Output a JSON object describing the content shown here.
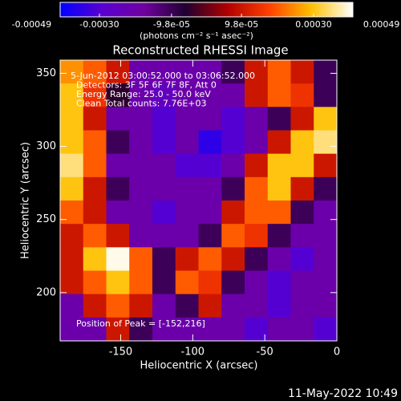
{
  "chart_data": {
    "type": "heatmap",
    "title": "Reconstructed RHESSI Image",
    "annotations": [
      "5-Jun-2012 03:00:52.000 to 03:06:52.000",
      "Detectors: 3F 5F 6F 7F 8F, Att 0",
      "Energy Range: 25.0 - 50.0 keV",
      "Clean     Total counts: 7.76E+03"
    ],
    "peak_label": "Position of Peak = [-152,216]",
    "timestamp": "11-May-2022 10:49",
    "xlabel": "Heliocentric X (arcsec)",
    "ylabel": "Heliocentric Y (arcsec)",
    "xlim": [
      -192,
      0
    ],
    "ylim": [
      167,
      359
    ],
    "xticks": [
      -150,
      -100,
      -50,
      0
    ],
    "yticks": [
      200,
      250,
      300,
      350
    ],
    "x": [
      -184,
      -168,
      -152,
      -136,
      -120,
      -104,
      -88,
      -72,
      -56,
      -40,
      -24,
      -8
    ],
    "y": [
      351,
      335,
      319,
      303,
      287,
      271,
      255,
      239,
      223,
      207,
      191,
      175
    ],
    "z": [
      [
        0.00025,
        0.0002,
        0.0001,
        -0.0002,
        -0.0002,
        -0.0002,
        -0.0002,
        -0.0001,
        0.0001,
        0.0002,
        0.0001,
        -0.0001
      ],
      [
        0.0003,
        0.00015,
        -5e-05,
        -0.0002,
        -0.00025,
        -0.0002,
        -0.0002,
        -0.0002,
        0.0001,
        0.0002,
        0.00015,
        -0.0001
      ],
      [
        0.0003,
        0.0001,
        -0.0002,
        -0.0002,
        -0.0003,
        -0.0002,
        -0.0002,
        -0.0003,
        -0.0002,
        -0.0001,
        0.0001,
        0.0003
      ],
      [
        0.0003,
        0.0002,
        -0.0001,
        -0.0002,
        -0.0003,
        -0.0002,
        -0.00035,
        -0.0003,
        -0.0002,
        0.0001,
        0.0003,
        0.00035
      ],
      [
        0.00035,
        0.0002,
        -0.0002,
        -0.0002,
        -0.0002,
        -0.0003,
        -0.0003,
        -0.0002,
        0.0001,
        0.0003,
        0.0003,
        0.0001
      ],
      [
        0.0003,
        0.0001,
        -0.0001,
        -0.0002,
        -0.0002,
        -0.0002,
        -0.0002,
        -0.0001,
        0.0002,
        0.0003,
        0.0001,
        -0.0001
      ],
      [
        0.0002,
        0.0001,
        -0.0002,
        -0.0002,
        -0.0003,
        -0.0002,
        -0.0002,
        0.0001,
        0.0002,
        0.0002,
        -0.0001,
        -0.0002
      ],
      [
        0.0001,
        0.0002,
        0.0001,
        -0.0002,
        -0.0002,
        -0.0002,
        -0.0001,
        0.0002,
        0.00015,
        -0.0001,
        -0.0002,
        -0.0002
      ],
      [
        0.0001,
        0.0003,
        0.0004,
        0.0002,
        -0.0001,
        0.0001,
        0.0002,
        0.0001,
        -0.0001,
        -0.0002,
        -0.0003,
        -0.0002
      ],
      [
        0.0001,
        0.0002,
        0.0003,
        0.0002,
        -0.0001,
        0.0002,
        0.00015,
        -0.0001,
        -0.0002,
        -0.0003,
        -0.0002,
        -0.0002
      ],
      [
        -0.0002,
        0.0001,
        0.0002,
        0.0001,
        -0.0002,
        -0.0001,
        0.0001,
        -0.0002,
        -0.0002,
        -0.0003,
        -0.0002,
        -0.0002
      ],
      [
        -0.0002,
        -0.0002,
        0.0001,
        -0.0001,
        -0.0002,
        -0.0002,
        -0.0002,
        -0.0002,
        -0.0003,
        -0.0002,
        -0.0002,
        -0.0003
      ]
    ],
    "clim": [
      -0.00041,
      0.00041
    ],
    "colormap": [
      "#0000ff",
      "#5a00d0",
      "#7000a0",
      "#200030",
      "#b00000",
      "#ff4000",
      "#ffc000",
      "#ffffff"
    ],
    "colorbar_label": "(photons cm⁻² s⁻¹ asec⁻²)",
    "colorbar_ticks": [
      -0.00049,
      {
        "value": -0.0003,
        "label": "-0.00030"
      },
      {
        "value": -9.8e-05,
        "label": "-9.8e-05"
      },
      {
        "value": 9.8e-05,
        "label": "9.8e-05"
      },
      {
        "value": 0.0003,
        "label": "0.00030"
      },
      0.00049
    ]
  }
}
